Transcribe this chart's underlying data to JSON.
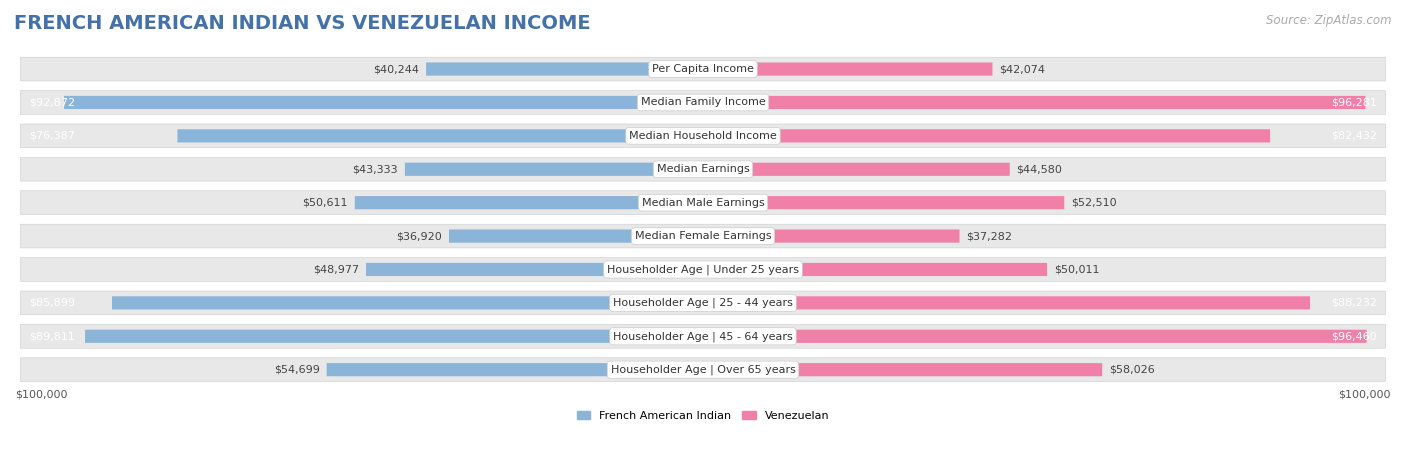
{
  "title": "FRENCH AMERICAN INDIAN VS VENEZUELAN INCOME",
  "source": "Source: ZipAtlas.com",
  "categories": [
    "Per Capita Income",
    "Median Family Income",
    "Median Household Income",
    "Median Earnings",
    "Median Male Earnings",
    "Median Female Earnings",
    "Householder Age | Under 25 years",
    "Householder Age | 25 - 44 years",
    "Householder Age | 45 - 64 years",
    "Householder Age | Over 65 years"
  ],
  "french_values": [
    40244,
    92872,
    76387,
    43333,
    50611,
    36920,
    48977,
    85899,
    89811,
    54699
  ],
  "venezuelan_values": [
    42074,
    96281,
    82432,
    44580,
    52510,
    37282,
    50011,
    88232,
    96460,
    58026
  ],
  "french_color": "#8ab4d8",
  "venezuelan_color": "#f080a8",
  "french_label": "French American Indian",
  "venezuelan_label": "Venezuelan",
  "max_value": 100000,
  "axis_label_left": "$100,000",
  "axis_label_right": "$100,000",
  "bg_color": "#ffffff",
  "row_bg_color": "#e8e8e8",
  "title_color": "#4472a8",
  "source_color": "#aaaaaa",
  "title_fontsize": 14,
  "source_fontsize": 8.5,
  "cat_fontsize": 8,
  "value_fontsize": 8,
  "threshold_white_text": 70000
}
